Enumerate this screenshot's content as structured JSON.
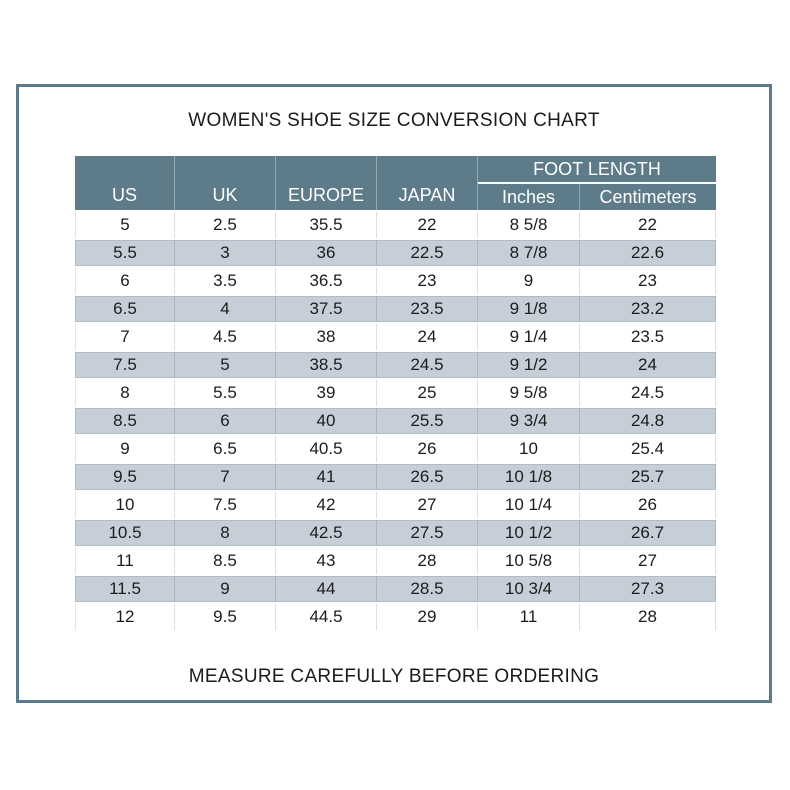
{
  "title": "WOMEN'S SHOE SIZE CONVERSION CHART",
  "footer": "MEASURE CAREFULLY BEFORE ORDERING",
  "colors": {
    "frame_border": "#5f7b8a",
    "header_bg": "#5e7b89",
    "header_text": "#ffffff",
    "stripe_bg": "#c6cfd7",
    "body_text": "#1c1c1c"
  },
  "chart_data": {
    "type": "table",
    "title": "WOMEN'S SHOE SIZE CONVERSION CHART",
    "footnote": "MEASURE CAREFULLY BEFORE ORDERING",
    "column_groups": [
      {
        "label": "FOOT LENGTH",
        "spans": [
          "Inches",
          "Centimeters"
        ]
      }
    ],
    "columns": [
      "US",
      "UK",
      "EUROPE",
      "JAPAN",
      "Inches",
      "Centimeters"
    ],
    "rows": [
      [
        "5",
        "2.5",
        "35.5",
        "22",
        "8 5/8",
        "22"
      ],
      [
        "5.5",
        "3",
        "36",
        "22.5",
        "8 7/8",
        "22.6"
      ],
      [
        "6",
        "3.5",
        "36.5",
        "23",
        "9",
        "23"
      ],
      [
        "6.5",
        "4",
        "37.5",
        "23.5",
        "9 1/8",
        "23.2"
      ],
      [
        "7",
        "4.5",
        "38",
        "24",
        "9 1/4",
        "23.5"
      ],
      [
        "7.5",
        "5",
        "38.5",
        "24.5",
        "9 1/2",
        "24"
      ],
      [
        "8",
        "5.5",
        "39",
        "25",
        "9 5/8",
        "24.5"
      ],
      [
        "8.5",
        "6",
        "40",
        "25.5",
        "9 3/4",
        "24.8"
      ],
      [
        "9",
        "6.5",
        "40.5",
        "26",
        "10",
        "25.4"
      ],
      [
        "9.5",
        "7",
        "41",
        "26.5",
        "10 1/8",
        "25.7"
      ],
      [
        "10",
        "7.5",
        "42",
        "27",
        "10 1/4",
        "26"
      ],
      [
        "10.5",
        "8",
        "42.5",
        "27.5",
        "10 1/2",
        "26.7"
      ],
      [
        "11",
        "8.5",
        "43",
        "28",
        "10 5/8",
        "27"
      ],
      [
        "11.5",
        "9",
        "44",
        "28.5",
        "10 3/4",
        "27.3"
      ],
      [
        "12",
        "9.5",
        "44.5",
        "29",
        "11",
        "28"
      ]
    ]
  }
}
